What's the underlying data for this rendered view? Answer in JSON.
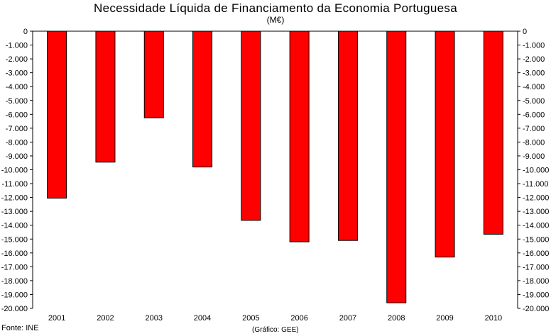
{
  "header": {
    "title": "Necessidade Líquida de Financiamento da Economia Portuguesa",
    "unit": "(M€)"
  },
  "footer": {
    "source": "Fonte: INE",
    "credit": "(Gráfico: GEE)"
  },
  "chart_data": {
    "type": "bar",
    "title": "Necessidade Líquida de Financiamento da Economia Portuguesa",
    "subtitle": "(M€)",
    "xlabel": "",
    "ylabel": "",
    "categories": [
      "2001",
      "2002",
      "2003",
      "2004",
      "2005",
      "2006",
      "2007",
      "2008",
      "2009",
      "2010"
    ],
    "series": [
      {
        "values": [
          -12050,
          -9450,
          -6250,
          -9800,
          -13650,
          -15200,
          -15100,
          -19600,
          -16300,
          -14650
        ]
      }
    ],
    "ylim": [
      -20000,
      0
    ],
    "yticks": [
      0,
      -1000,
      -2000,
      -3000,
      -4000,
      -5000,
      -6000,
      -7000,
      -8000,
      -9000,
      -10000,
      -11000,
      -12000,
      -13000,
      -14000,
      -15000,
      -16000,
      -17000,
      -18000,
      -19000,
      -20000
    ],
    "ytick_labels": [
      "0",
      "-1.000",
      "-2.000",
      "-3.000",
      "-4.000",
      "-5.000",
      "-6.000",
      "-7.000",
      "-8.000",
      "-9.000",
      "-10.000",
      "-11.000",
      "-12.000",
      "-13.000",
      "-14.000",
      "-15.000",
      "-16.000",
      "-17.000",
      "-18.000",
      "-19.000",
      "-20.000"
    ],
    "secondary_y_axis": true,
    "grid": false,
    "legend": "none",
    "bar_color": "#ff0000",
    "bar_edge_color": "#000000"
  }
}
